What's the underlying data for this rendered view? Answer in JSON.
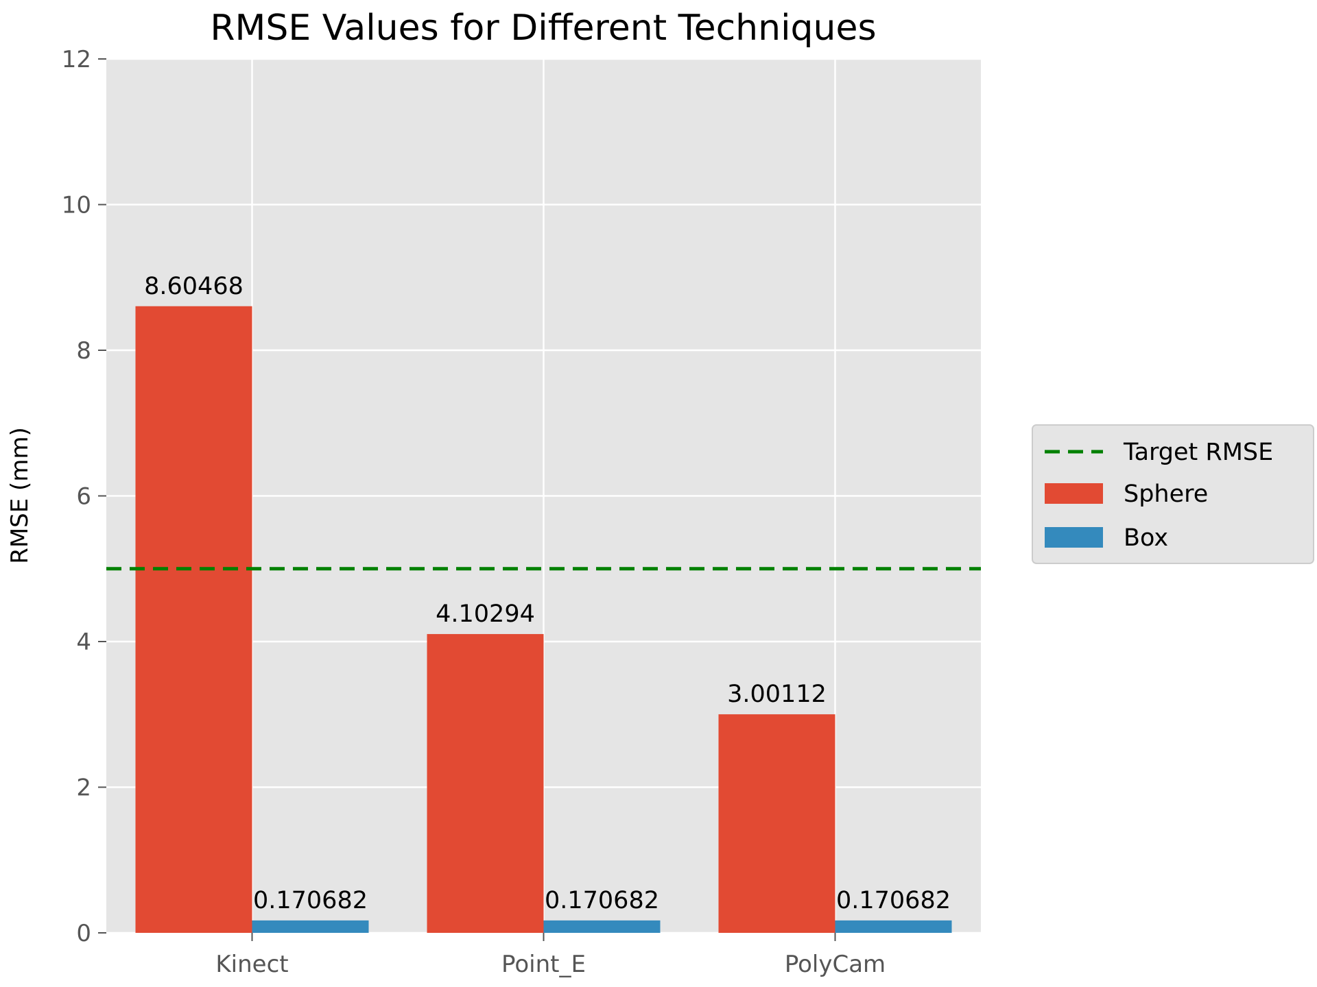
{
  "chart_data": {
    "type": "bar",
    "title": "RMSE Values for Different Techniques",
    "xlabel": "",
    "ylabel": "RMSE (mm)",
    "categories": [
      "Kinect",
      "Point_E",
      "PolyCam"
    ],
    "series": [
      {
        "name": "Sphere",
        "color": "#E24A33",
        "values": [
          8.60468,
          4.10294,
          3.00112
        ],
        "labels": [
          "8.60468",
          "4.10294",
          "3.00112"
        ]
      },
      {
        "name": "Box",
        "color": "#348ABD",
        "values": [
          0.170682,
          0.170682,
          0.170682
        ],
        "labels": [
          "0.170682",
          "0.170682",
          "0.170682"
        ]
      }
    ],
    "reference_line": {
      "name": "Target RMSE",
      "value": 5,
      "color": "#008000",
      "style": "dashed"
    },
    "ylim": [
      0,
      12
    ],
    "yticks": [
      0,
      2,
      4,
      6,
      8,
      10,
      12
    ],
    "grid": true,
    "legend_position": "right",
    "legend_entries": [
      "Target RMSE",
      "Sphere",
      "Box"
    ],
    "background_color": "#E5E5E5"
  }
}
